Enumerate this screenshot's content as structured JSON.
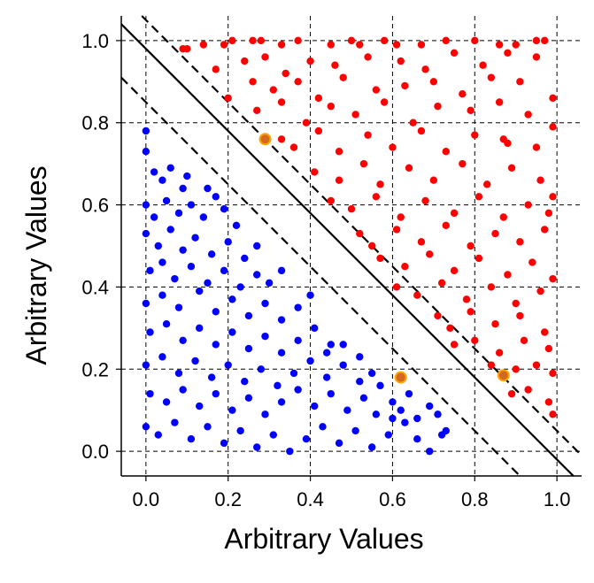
{
  "chart_data": {
    "type": "scatter",
    "xlabel": "Arbitrary Values",
    "ylabel": "Arbitrary Values",
    "xlim": [
      -0.06,
      1.06
    ],
    "ylim": [
      -0.06,
      1.06
    ],
    "xticks": [
      "0.0",
      "0.2",
      "0.4",
      "0.6",
      "0.8",
      "1.0"
    ],
    "yticks": [
      "0.0",
      "0.2",
      "0.4",
      "0.6",
      "0.8",
      "1.0"
    ],
    "tick_values": [
      0,
      0.2,
      0.4,
      0.6,
      0.8,
      1.0
    ],
    "grid": true,
    "grid_style": "dashed",
    "legend": "none",
    "colors": {
      "class_a": "#ff0000",
      "class_b": "#0000ff",
      "support_vectors": "#ffa500",
      "decision_boundary": "#000000"
    },
    "lines": [
      {
        "type": "decision-boundary",
        "style": "solid",
        "intercept": 0.98,
        "slope": -1
      },
      {
        "type": "margin-upper",
        "style": "dashed",
        "intercept": 1.05,
        "slope": -1
      },
      {
        "type": "margin-lower",
        "style": "dashed",
        "intercept": 0.85,
        "slope": -1
      }
    ],
    "support_vectors": [
      {
        "x": 0.29,
        "y": 0.76
      },
      {
        "x": 0.62,
        "y": 0.18
      },
      {
        "x": 0.87,
        "y": 0.185
      }
    ],
    "series": [
      {
        "class": "upper-right",
        "color": "#ff0000",
        "points": [
          [
            0.09,
            0.98
          ],
          [
            0.1,
            0.98
          ],
          [
            0.14,
            0.99
          ],
          [
            0.19,
            0.99
          ],
          [
            0.21,
            1.0
          ],
          [
            0.26,
            1.0
          ],
          [
            0.28,
            1.0
          ],
          [
            0.33,
            0.99
          ],
          [
            0.37,
            1.0
          ],
          [
            0.45,
            0.99
          ],
          [
            0.5,
            1.0
          ],
          [
            0.52,
            0.99
          ],
          [
            0.58,
            1.0
          ],
          [
            0.61,
            0.99
          ],
          [
            0.67,
            0.99
          ],
          [
            0.73,
            1.0
          ],
          [
            0.8,
            1.0
          ],
          [
            0.86,
            0.99
          ],
          [
            0.9,
            0.99
          ],
          [
            0.95,
            1.0
          ],
          [
            0.97,
            1.0
          ],
          [
            0.17,
            0.93
          ],
          [
            0.24,
            0.95
          ],
          [
            0.29,
            0.96
          ],
          [
            0.34,
            0.92
          ],
          [
            0.4,
            0.95
          ],
          [
            0.46,
            0.94
          ],
          [
            0.54,
            0.96
          ],
          [
            0.62,
            0.95
          ],
          [
            0.68,
            0.93
          ],
          [
            0.75,
            0.97
          ],
          [
            0.82,
            0.94
          ],
          [
            0.88,
            0.97
          ],
          [
            0.95,
            0.96
          ],
          [
            0.2,
            0.86
          ],
          [
            0.26,
            0.9
          ],
          [
            0.31,
            0.88
          ],
          [
            0.37,
            0.9
          ],
          [
            0.42,
            0.86
          ],
          [
            0.48,
            0.91
          ],
          [
            0.56,
            0.88
          ],
          [
            0.63,
            0.89
          ],
          [
            0.7,
            0.9
          ],
          [
            0.77,
            0.87
          ],
          [
            0.84,
            0.91
          ],
          [
            0.91,
            0.9
          ],
          [
            0.99,
            0.86
          ],
          [
            0.27,
            0.83
          ],
          [
            0.33,
            0.85
          ],
          [
            0.39,
            0.8
          ],
          [
            0.45,
            0.84
          ],
          [
            0.51,
            0.82
          ],
          [
            0.58,
            0.85
          ],
          [
            0.65,
            0.8
          ],
          [
            0.71,
            0.84
          ],
          [
            0.79,
            0.83
          ],
          [
            0.86,
            0.85
          ],
          [
            0.93,
            0.82
          ],
          [
            0.99,
            0.79
          ],
          [
            0.33,
            0.76
          ],
          [
            0.36,
            0.74
          ],
          [
            0.42,
            0.78
          ],
          [
            0.47,
            0.73
          ],
          [
            0.54,
            0.77
          ],
          [
            0.6,
            0.74
          ],
          [
            0.67,
            0.78
          ],
          [
            0.73,
            0.73
          ],
          [
            0.8,
            0.77
          ],
          [
            0.87,
            0.76
          ],
          [
            0.88,
            0.75
          ],
          [
            0.95,
            0.74
          ],
          [
            0.41,
            0.68
          ],
          [
            0.47,
            0.66
          ],
          [
            0.53,
            0.7
          ],
          [
            0.57,
            0.65
          ],
          [
            0.64,
            0.69
          ],
          [
            0.7,
            0.66
          ],
          [
            0.77,
            0.7
          ],
          [
            0.83,
            0.65
          ],
          [
            0.89,
            0.69
          ],
          [
            0.96,
            0.66
          ],
          [
            0.99,
            0.62
          ],
          [
            0.45,
            0.61
          ],
          [
            0.5,
            0.59
          ],
          [
            0.56,
            0.62
          ],
          [
            0.62,
            0.57
          ],
          [
            0.68,
            0.61
          ],
          [
            0.75,
            0.58
          ],
          [
            0.81,
            0.62
          ],
          [
            0.87,
            0.57
          ],
          [
            0.93,
            0.6
          ],
          [
            0.98,
            0.58
          ],
          [
            0.52,
            0.53
          ],
          [
            0.55,
            0.5
          ],
          [
            0.61,
            0.54
          ],
          [
            0.67,
            0.51
          ],
          [
            0.73,
            0.55
          ],
          [
            0.79,
            0.5
          ],
          [
            0.85,
            0.53
          ],
          [
            0.91,
            0.51
          ],
          [
            0.97,
            0.54
          ],
          [
            0.57,
            0.47
          ],
          [
            0.63,
            0.45
          ],
          [
            0.69,
            0.48
          ],
          [
            0.75,
            0.44
          ],
          [
            0.81,
            0.47
          ],
          [
            0.88,
            0.43
          ],
          [
            0.94,
            0.46
          ],
          [
            0.99,
            0.42
          ],
          [
            0.61,
            0.4
          ],
          [
            0.66,
            0.38
          ],
          [
            0.72,
            0.41
          ],
          [
            0.78,
            0.37
          ],
          [
            0.84,
            0.4
          ],
          [
            0.9,
            0.36
          ],
          [
            0.96,
            0.39
          ],
          [
            0.71,
            0.33
          ],
          [
            0.74,
            0.3
          ],
          [
            0.79,
            0.34
          ],
          [
            0.85,
            0.31
          ],
          [
            0.91,
            0.33
          ],
          [
            0.97,
            0.29
          ],
          [
            0.75,
            0.26
          ],
          [
            0.8,
            0.27
          ],
          [
            0.86,
            0.24
          ],
          [
            0.92,
            0.27
          ],
          [
            0.98,
            0.25
          ],
          [
            0.84,
            0.21
          ],
          [
            0.9,
            0.2
          ],
          [
            0.95,
            0.21
          ],
          [
            0.99,
            0.19
          ],
          [
            0.89,
            0.14
          ],
          [
            0.93,
            0.15
          ],
          [
            0.98,
            0.12
          ],
          [
            0.99,
            0.09
          ]
        ]
      },
      {
        "class": "lower-left",
        "color": "#0000ff",
        "points": [
          [
            0.0,
            0.78
          ],
          [
            0.0,
            0.73
          ],
          [
            0.02,
            0.68
          ],
          [
            0.04,
            0.66
          ],
          [
            0.06,
            0.69
          ],
          [
            0.09,
            0.64
          ],
          [
            0.1,
            0.67
          ],
          [
            0.15,
            0.64
          ],
          [
            0.17,
            0.62
          ],
          [
            0.0,
            0.6
          ],
          [
            0.02,
            0.57
          ],
          [
            0.05,
            0.61
          ],
          [
            0.08,
            0.58
          ],
          [
            0.11,
            0.6
          ],
          [
            0.14,
            0.57
          ],
          [
            0.19,
            0.59
          ],
          [
            0.22,
            0.55
          ],
          [
            0.0,
            0.53
          ],
          [
            0.03,
            0.5
          ],
          [
            0.06,
            0.54
          ],
          [
            0.09,
            0.49
          ],
          [
            0.12,
            0.52
          ],
          [
            0.16,
            0.48
          ],
          [
            0.2,
            0.51
          ],
          [
            0.24,
            0.47
          ],
          [
            0.27,
            0.5
          ],
          [
            0.01,
            0.44
          ],
          [
            0.04,
            0.46
          ],
          [
            0.07,
            0.42
          ],
          [
            0.11,
            0.45
          ],
          [
            0.15,
            0.41
          ],
          [
            0.19,
            0.44
          ],
          [
            0.23,
            0.4
          ],
          [
            0.27,
            0.43
          ],
          [
            0.3,
            0.41
          ],
          [
            0.33,
            0.44
          ],
          [
            0.0,
            0.36
          ],
          [
            0.04,
            0.38
          ],
          [
            0.08,
            0.35
          ],
          [
            0.13,
            0.39
          ],
          [
            0.17,
            0.34
          ],
          [
            0.21,
            0.37
          ],
          [
            0.25,
            0.33
          ],
          [
            0.29,
            0.36
          ],
          [
            0.33,
            0.32
          ],
          [
            0.37,
            0.35
          ],
          [
            0.4,
            0.38
          ],
          [
            0.01,
            0.29
          ],
          [
            0.05,
            0.31
          ],
          [
            0.09,
            0.27
          ],
          [
            0.13,
            0.3
          ],
          [
            0.17,
            0.26
          ],
          [
            0.21,
            0.29
          ],
          [
            0.25,
            0.25
          ],
          [
            0.29,
            0.28
          ],
          [
            0.33,
            0.24
          ],
          [
            0.37,
            0.27
          ],
          [
            0.41,
            0.3
          ],
          [
            0.45,
            0.26
          ],
          [
            0.0,
            0.21
          ],
          [
            0.04,
            0.23
          ],
          [
            0.08,
            0.19
          ],
          [
            0.12,
            0.22
          ],
          [
            0.16,
            0.18
          ],
          [
            0.2,
            0.21
          ],
          [
            0.24,
            0.17
          ],
          [
            0.28,
            0.2
          ],
          [
            0.32,
            0.16
          ],
          [
            0.36,
            0.19
          ],
          [
            0.4,
            0.22
          ],
          [
            0.44,
            0.18
          ],
          [
            0.48,
            0.21
          ],
          [
            0.52,
            0.23
          ],
          [
            0.55,
            0.19
          ],
          [
            0.01,
            0.14
          ],
          [
            0.05,
            0.12
          ],
          [
            0.09,
            0.15
          ],
          [
            0.13,
            0.11
          ],
          [
            0.17,
            0.14
          ],
          [
            0.21,
            0.1
          ],
          [
            0.25,
            0.13
          ],
          [
            0.29,
            0.09
          ],
          [
            0.33,
            0.12
          ],
          [
            0.37,
            0.15
          ],
          [
            0.41,
            0.11
          ],
          [
            0.45,
            0.14
          ],
          [
            0.49,
            0.1
          ],
          [
            0.53,
            0.13
          ],
          [
            0.57,
            0.16
          ],
          [
            0.6,
            0.12
          ],
          [
            0.64,
            0.14
          ],
          [
            0.0,
            0.06
          ],
          [
            0.03,
            0.04
          ],
          [
            0.07,
            0.07
          ],
          [
            0.11,
            0.03
          ],
          [
            0.15,
            0.06
          ],
          [
            0.19,
            0.02
          ],
          [
            0.23,
            0.05
          ],
          [
            0.27,
            0.01
          ],
          [
            0.31,
            0.04
          ],
          [
            0.35,
            0.0
          ],
          [
            0.39,
            0.03
          ],
          [
            0.43,
            0.06
          ],
          [
            0.47,
            0.02
          ],
          [
            0.51,
            0.05
          ],
          [
            0.55,
            0.01
          ],
          [
            0.59,
            0.04
          ],
          [
            0.63,
            0.07
          ],
          [
            0.66,
            0.03
          ],
          [
            0.69,
            0.0
          ],
          [
            0.72,
            0.04
          ],
          [
            0.44,
            0.24
          ],
          [
            0.48,
            0.26
          ],
          [
            0.52,
            0.17
          ],
          [
            0.56,
            0.09
          ],
          [
            0.6,
            0.08
          ],
          [
            0.62,
            0.1
          ],
          [
            0.66,
            0.08
          ],
          [
            0.69,
            0.11
          ],
          [
            0.71,
            0.09
          ],
          [
            0.73,
            0.05
          ]
        ]
      }
    ]
  }
}
